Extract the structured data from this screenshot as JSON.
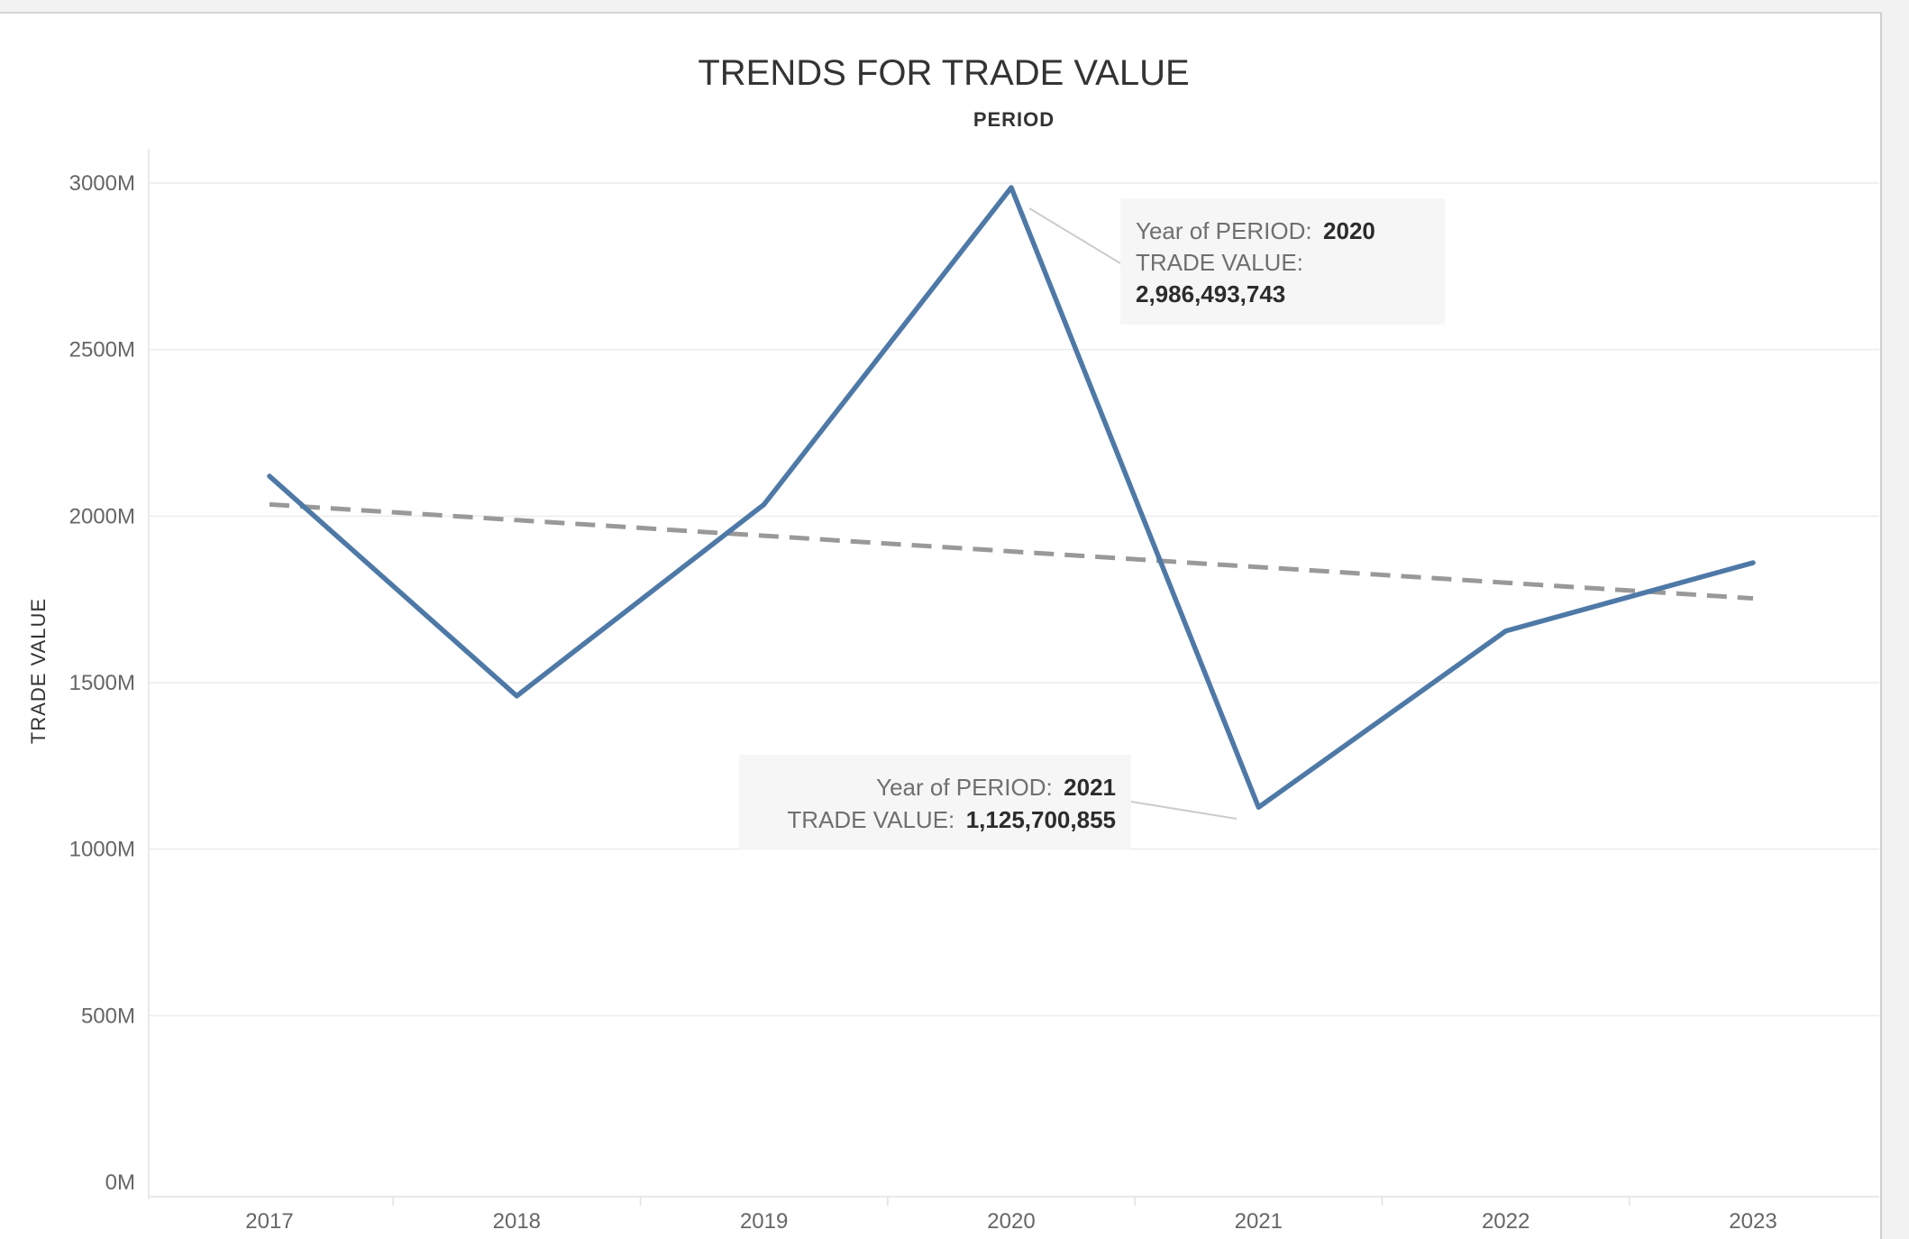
{
  "chart_data": {
    "type": "line",
    "title": "TRENDS FOR TRADE VALUE",
    "xlabel": "PERIOD",
    "ylabel": "TRADE VALUE",
    "categories": [
      "2017",
      "2018",
      "2019",
      "2020",
      "2021",
      "2022",
      "2023"
    ],
    "series": [
      {
        "values": [
          2120000000,
          1460000000,
          2035000000,
          2986493743,
          1125700855,
          1655000000,
          1860000000
        ],
        "color": "#4e79a7",
        "style": "solid"
      },
      {
        "values": [
          2035000000,
          1988000000,
          1941000000,
          1894000000,
          1847000000,
          1800000000,
          1753000000
        ],
        "color": "#999999",
        "style": "dashed",
        "role": "trend line"
      }
    ],
    "yticks": [
      0,
      500000000,
      1000000000,
      1500000000,
      2000000000,
      2500000000,
      3000000000
    ],
    "ytick_labels": [
      "0M",
      "500M",
      "1000M",
      "1500M",
      "2000M",
      "2500M",
      "3000M"
    ],
    "ylim": [
      0,
      3000000000
    ],
    "grid": true,
    "legend": "none",
    "annotations": [
      {
        "year_label": "Year of PERIOD:",
        "year_value": "2020",
        "value_label": "TRADE VALUE:",
        "value": "2,986,493,743"
      },
      {
        "year_label": "Year of PERIOD:",
        "year_value": "2021",
        "value_label": "TRADE VALUE:",
        "value": "1,125,700,855"
      }
    ]
  }
}
